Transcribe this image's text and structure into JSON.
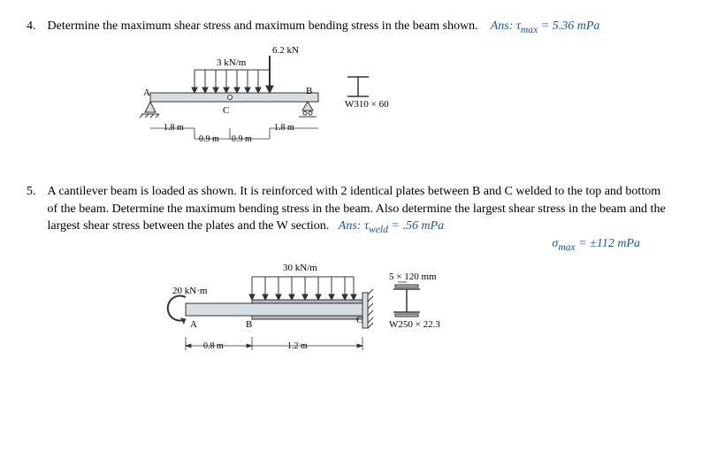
{
  "problem4": {
    "number": "4.",
    "text": "Determine the maximum shear stress and maximum bending stress in the beam shown.",
    "ans_label": "Ans:",
    "ans_formula": "τ<sub>max</sub> = 5.36 mPa",
    "fig": {
      "load_point": "6.2 kN",
      "load_dist": "3 kN/m",
      "ptA": "A",
      "ptB": "B",
      "ptC": "C",
      "dim1": "1.8 m",
      "dim2": "0.9 m",
      "dim3": "0.9 m",
      "dim4": "1.8 m",
      "section": "W310 × 60"
    }
  },
  "problem5": {
    "number": "5.",
    "text": "A cantilever beam is loaded as shown. It is reinforced with 2 identical plates between B and C welded to the top and bottom of the beam. Determine the maximum bending stress in the beam. Also determine the largest shear stress in the beam and the largest shear stress between the plates and the W section.",
    "ans_label": "Ans:",
    "ans1": "τ<sub>weld</sub> = .56 mPa",
    "ans2": "σ<sub>max</sub> = ±112 mPa",
    "fig": {
      "load_dist": "30 kN/m",
      "load_moment": "20 kN·m",
      "ptA": "A",
      "ptB": "B",
      "ptC": "C",
      "dim1": "0.8 m",
      "dim2": "1.2 m",
      "plate": "5 × 120 mm",
      "section": "W250 × 22.3"
    }
  },
  "colors": {
    "text": "#000000",
    "hand": "#1757b0",
    "beam_fill": "#d8dde2",
    "beam_stroke": "#333333",
    "arrow": "#333333"
  }
}
